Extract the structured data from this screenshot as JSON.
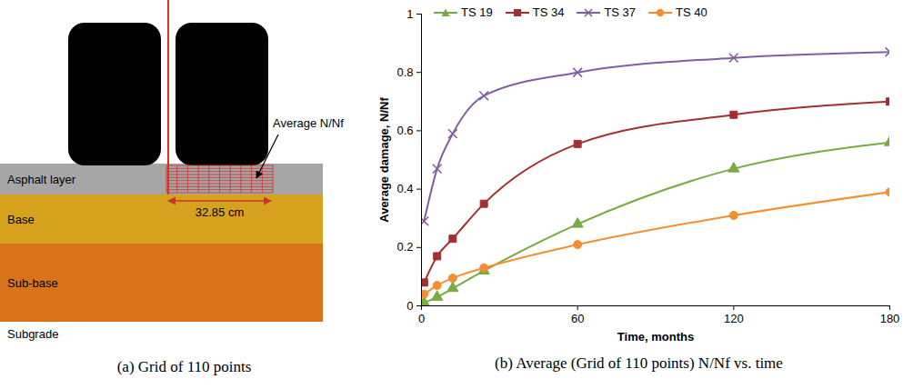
{
  "diagram": {
    "layers": [
      "Asphalt layer",
      "Base",
      "Sub-base",
      "Subgrade"
    ],
    "grid_label": "Average N/Nf",
    "width_label": "32.85 cm"
  },
  "captions": [
    "(a) Grid of 110 points",
    "(b) Average (Grid of 110 points) N/Nf vs. time"
  ],
  "chart_data": {
    "type": "line",
    "xlabel": "Time, months",
    "ylabel": "Average damage, N/Nf",
    "x": [
      1,
      6,
      12,
      24,
      60,
      120,
      180
    ],
    "series": [
      {
        "name": "TS 19",
        "color": "#77ab43",
        "marker": "triangle",
        "values": [
          0.01,
          0.03,
          0.06,
          0.12,
          0.28,
          0.47,
          0.56
        ]
      },
      {
        "name": "TS 34",
        "color": "#a33030",
        "marker": "square",
        "values": [
          0.08,
          0.17,
          0.23,
          0.35,
          0.555,
          0.655,
          0.7
        ]
      },
      {
        "name": "TS 37",
        "color": "#7e60a0",
        "marker": "x",
        "values": [
          0.29,
          0.47,
          0.59,
          0.72,
          0.8,
          0.85,
          0.87
        ]
      },
      {
        "name": "TS 40",
        "color": "#f38f30",
        "marker": "circle",
        "values": [
          0.04,
          0.07,
          0.095,
          0.13,
          0.21,
          0.31,
          0.39
        ]
      }
    ],
    "xlim": [
      0,
      180
    ],
    "ylim": [
      0,
      1
    ],
    "xticks": [
      0,
      60,
      120,
      180
    ],
    "yticks": [
      0,
      0.2,
      0.4,
      0.6,
      0.8,
      1
    ],
    "legend": "top-left",
    "grid": false,
    "line_style": "solid"
  }
}
